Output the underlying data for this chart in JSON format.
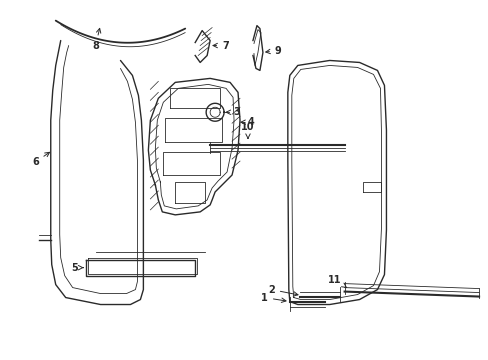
{
  "background_color": "#ffffff",
  "line_color": "#2a2a2a",
  "figsize": [
    4.89,
    3.6
  ],
  "dpi": 100,
  "lw": 1.0,
  "lw_thick": 1.5,
  "lw_thin": 0.6,
  "fs": 7.0
}
